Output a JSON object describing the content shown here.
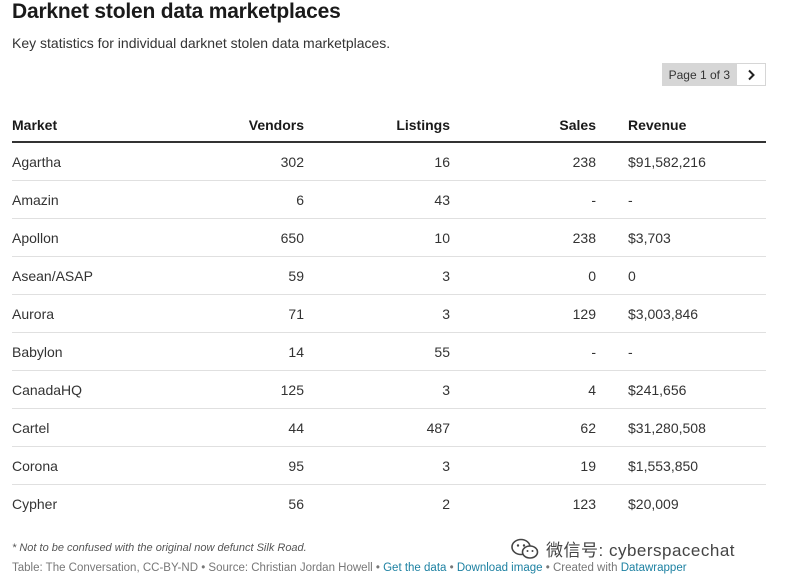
{
  "header": {
    "title": "Darknet stolen data marketplaces",
    "subtitle": "Key statistics for individual darknet stolen data marketplaces."
  },
  "pagination": {
    "label": "Page 1 of 3"
  },
  "table": {
    "columns": [
      "Market",
      "Vendors",
      "Listings",
      "Sales",
      "Revenue"
    ],
    "rows": [
      [
        "Agartha",
        "302",
        "16",
        "238",
        "$91,582,216"
      ],
      [
        "Amazin",
        "6",
        "43",
        "-",
        "-"
      ],
      [
        "Apollon",
        "650",
        "10",
        "238",
        "$3,703"
      ],
      [
        "Asean/ASAP",
        "59",
        "3",
        "0",
        "0"
      ],
      [
        "Aurora",
        "71",
        "3",
        "129",
        "$3,003,846"
      ],
      [
        "Babylon",
        "14",
        "55",
        "-",
        "-"
      ],
      [
        "CanadaHQ",
        "125",
        "3",
        "4",
        "$241,656"
      ],
      [
        "Cartel",
        "44",
        "487",
        "62",
        "$31,280,508"
      ],
      [
        "Corona",
        "95",
        "3",
        "19",
        "$1,553,850"
      ],
      [
        "Cypher",
        "56",
        "2",
        "123",
        "$20,009"
      ]
    ]
  },
  "footer": {
    "note": "* Not to be confused with the original now defunct Silk Road.",
    "source_prefix": "Table: The Conversation, CC-BY-ND • Source: Christian Jordan Howell •",
    "get_data": "Get the data",
    "sep1": "•",
    "download_image": "Download image",
    "sep2": "• Created with",
    "datawrapper": "Datawrapper"
  },
  "watermark": {
    "text": "微信号: cyberspacechat",
    "icon": "wechat-logo-icon"
  },
  "colors": {
    "link": "#1d81a2",
    "header_rule": "#333333",
    "row_rule": "#e0e0e0",
    "pager_bg": "#d6d6d6"
  }
}
